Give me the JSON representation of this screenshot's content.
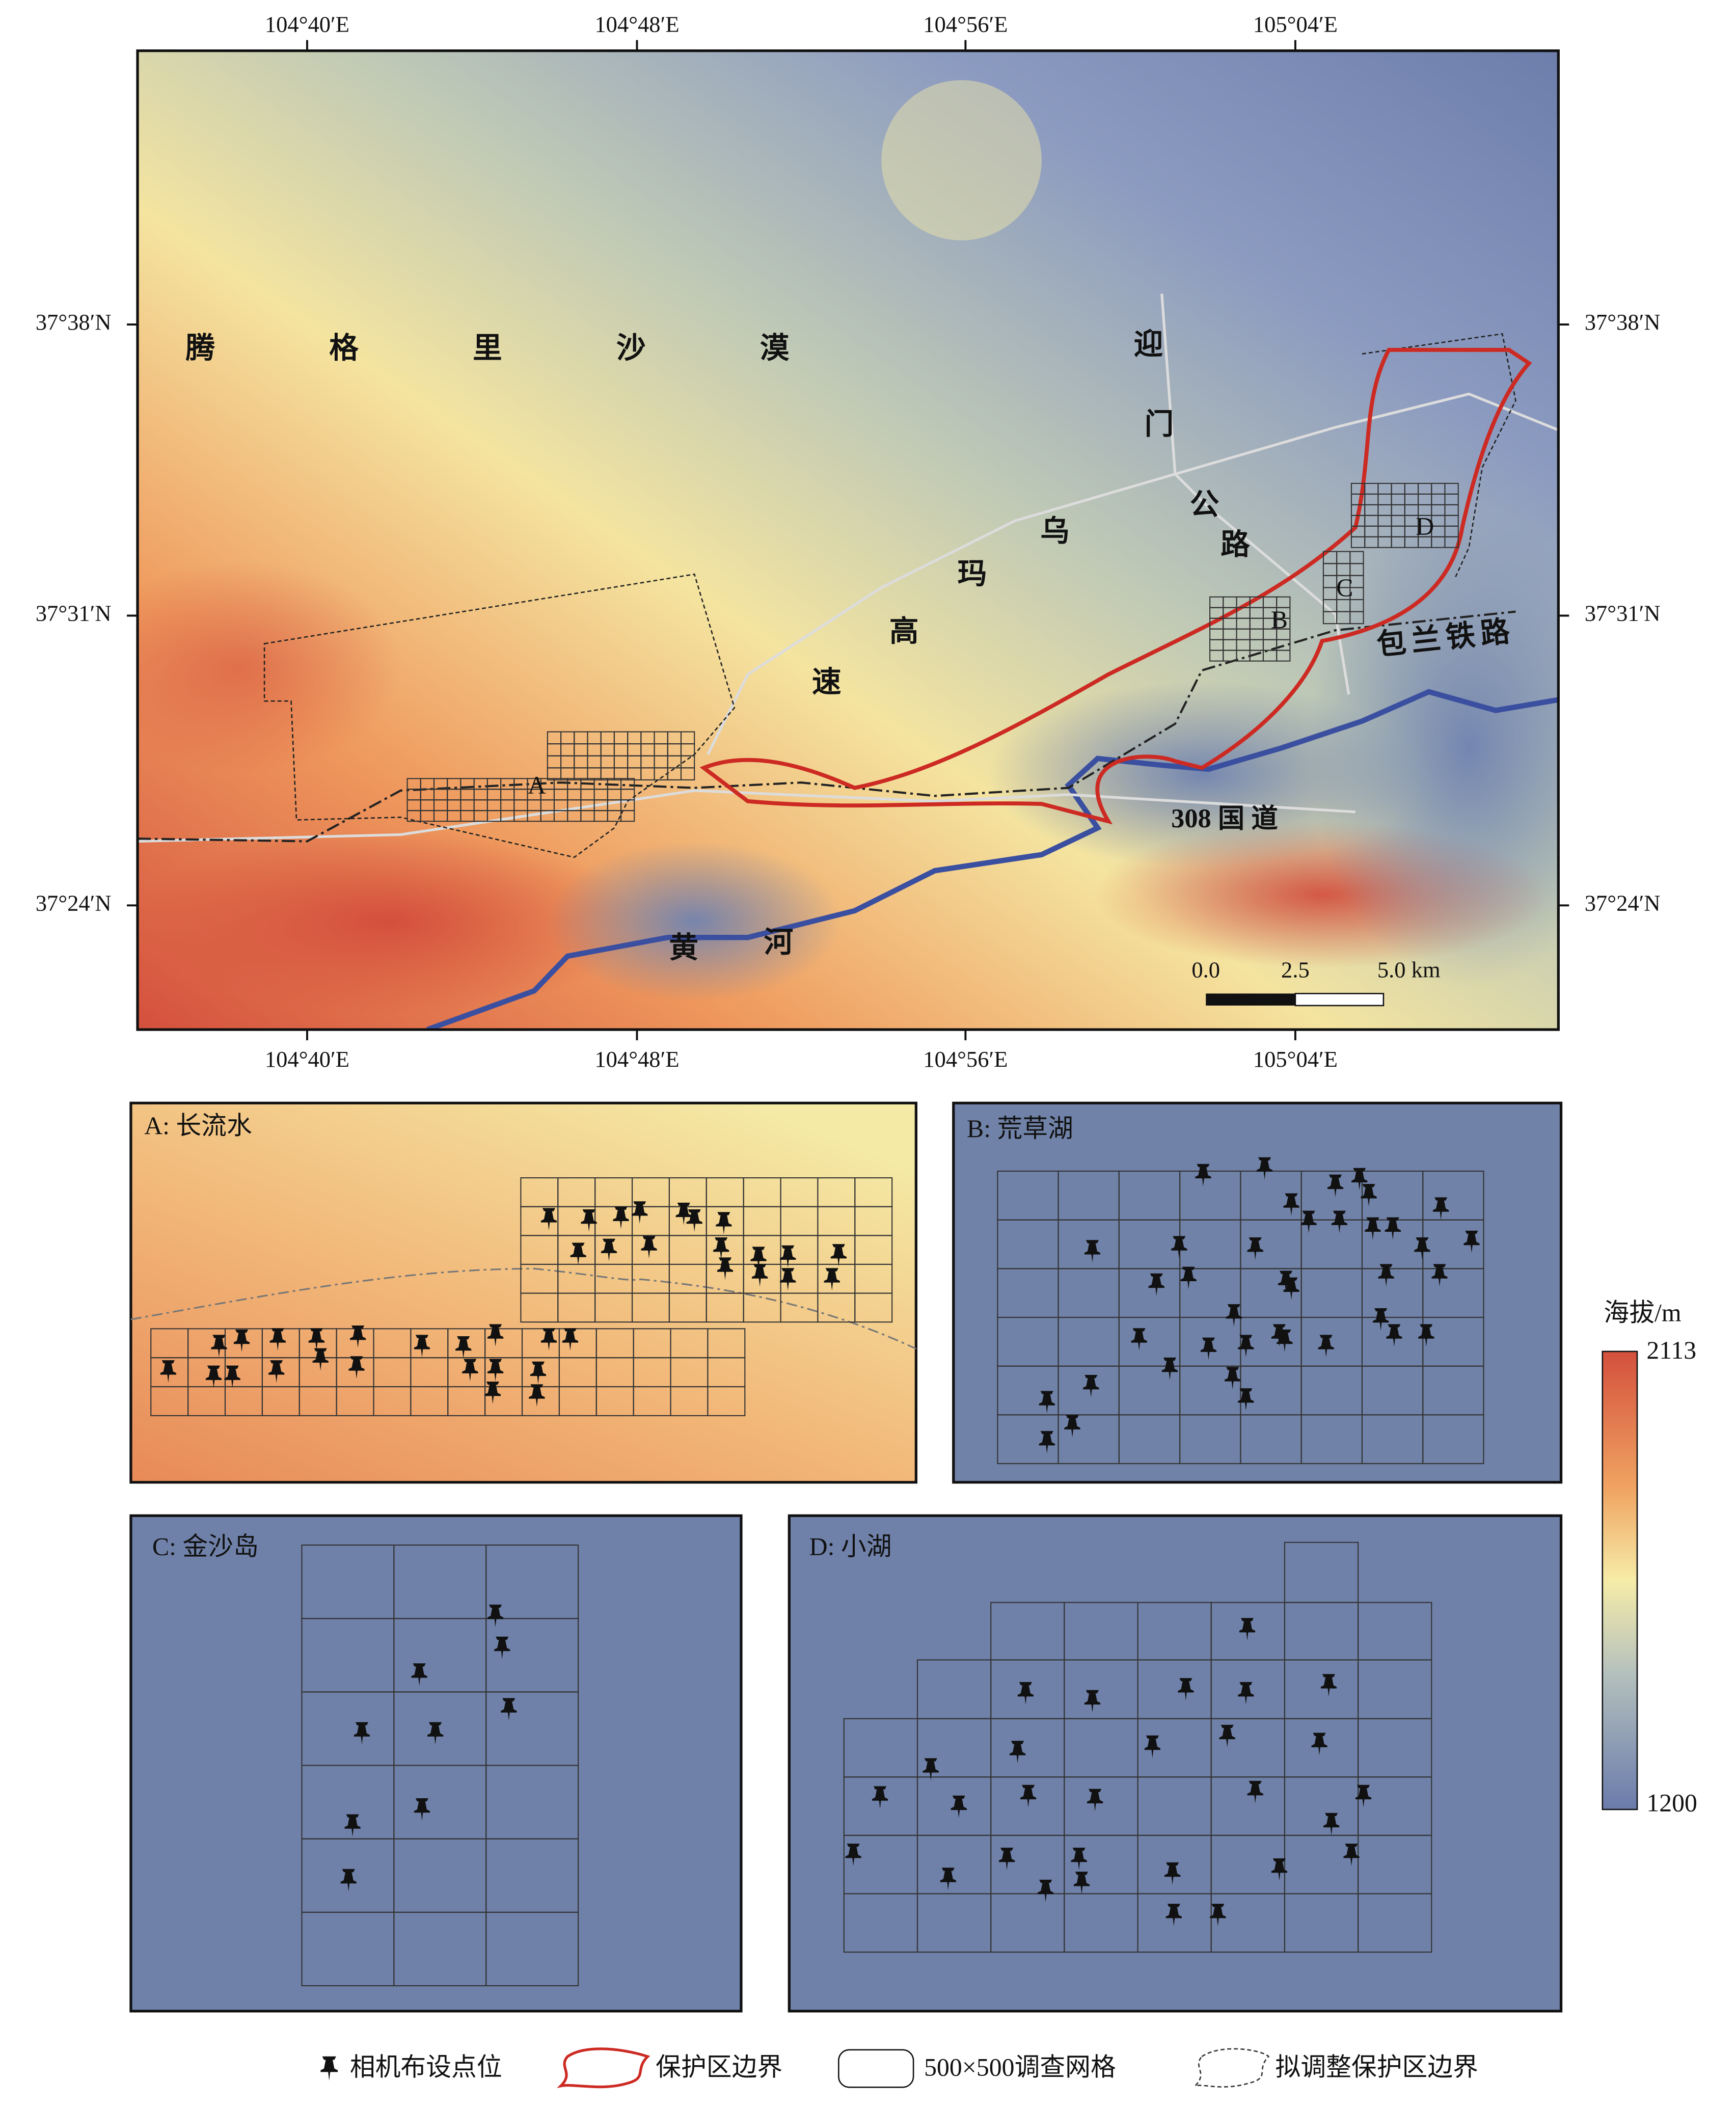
{
  "main_map": {
    "lon_labels": [
      "104°40′E",
      "104°48′E",
      "104°56′E",
      "105°04′E"
    ],
    "lat_labels": [
      "37°38′N",
      "37°31′N",
      "37°24′N"
    ],
    "desert": "腾 格 里 沙 漠",
    "road_yingmen": [
      "迎",
      "门",
      "公",
      "路"
    ],
    "highway_wuma": [
      "乌",
      "玛",
      "高",
      "速"
    ],
    "railway": "包兰铁路",
    "national_road": "308 国 道",
    "river": [
      "黄",
      "河"
    ],
    "grid_labels": [
      "A",
      "B",
      "C",
      "D"
    ],
    "scale_labels": [
      "0.0",
      "2.5",
      "5.0 km"
    ]
  },
  "insets": [
    "A: 长流水",
    "B: 荒草湖",
    "C: 金沙岛",
    "D: 小湖"
  ],
  "colorbar": {
    "title": "海拔/m",
    "max": 2113,
    "min": 1200
  },
  "legend": [
    "相机布设点位",
    "保护区边界",
    "500×500调查网格",
    "拟调整保护区边界"
  ]
}
